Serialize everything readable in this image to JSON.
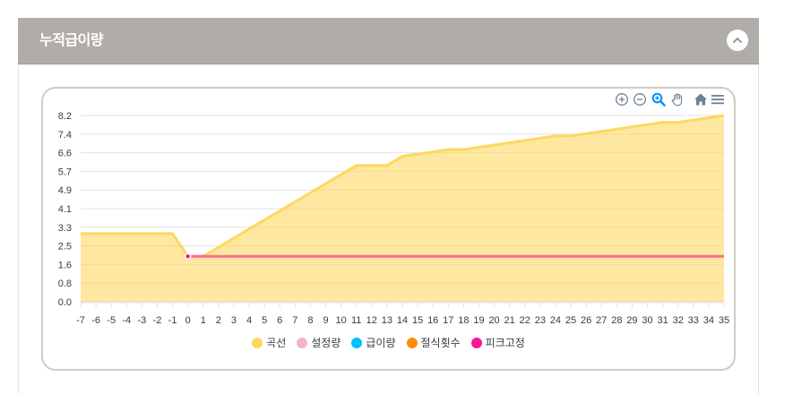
{
  "panel": {
    "title": "누적급이량",
    "collapse_icon": "chevron-up-icon"
  },
  "toolbar": {
    "icons": [
      {
        "name": "zoom-in-icon",
        "title": "Zoom In"
      },
      {
        "name": "zoom-out-icon",
        "title": "Zoom Out"
      },
      {
        "name": "selection-zoom-icon",
        "title": "Selection Zoom",
        "active": true
      },
      {
        "name": "pan-hand-icon",
        "title": "Panning"
      },
      {
        "name": "reset-home-icon",
        "title": "Reset Zoom"
      },
      {
        "name": "menu-icon",
        "title": "Menu"
      }
    ],
    "icon_color": "#6e8192",
    "active_color": "#008ffb"
  },
  "chart_data": {
    "type": "area",
    "title": "누적급이량",
    "xlabel": "",
    "ylabel": "",
    "x": [
      -7,
      -6,
      -5,
      -4,
      -3,
      -2,
      -1,
      0,
      1,
      2,
      3,
      4,
      5,
      6,
      7,
      8,
      9,
      10,
      11,
      12,
      13,
      14,
      15,
      16,
      17,
      18,
      19,
      20,
      21,
      22,
      23,
      24,
      25,
      26,
      27,
      28,
      29,
      30,
      31,
      32,
      33,
      34,
      35
    ],
    "xlim": [
      -7,
      35
    ],
    "ylim": [
      0,
      8.2
    ],
    "yticks": [
      "0.0",
      "0.8",
      "1.6",
      "2.5",
      "3.3",
      "4.1",
      "4.9",
      "5.7",
      "6.6",
      "7.4",
      "8.2"
    ],
    "grid": true,
    "legend_position": "bottom",
    "series": [
      {
        "name": "곡선",
        "type": "area",
        "color": "#fdd85d",
        "x": [
          -7,
          -6,
          -5,
          -4,
          -3,
          -2,
          -1,
          0,
          1,
          2,
          3,
          4,
          5,
          6,
          7,
          8,
          9,
          10,
          11,
          12,
          13,
          14,
          15,
          16,
          17,
          18,
          19,
          20,
          21,
          22,
          23,
          24,
          25,
          26,
          27,
          28,
          29,
          30,
          31,
          32,
          33,
          34,
          35
        ],
        "values": [
          3.0,
          3.0,
          3.0,
          3.0,
          3.0,
          3.0,
          3.0,
          2.0,
          2.0,
          2.4,
          2.8,
          3.2,
          3.6,
          4.0,
          4.4,
          4.8,
          5.2,
          5.6,
          6.0,
          6.0,
          6.0,
          6.4,
          6.5,
          6.6,
          6.7,
          6.7,
          6.8,
          6.9,
          7.0,
          7.1,
          7.2,
          7.3,
          7.3,
          7.4,
          7.5,
          7.6,
          7.7,
          7.8,
          7.9,
          7.9,
          8.0,
          8.1,
          8.2
        ]
      },
      {
        "name": "설정량",
        "type": "line",
        "color": "#f7b3c1",
        "line_color": "#f4728d",
        "x": [
          0,
          35
        ],
        "values": [
          2.0,
          2.0
        ]
      },
      {
        "name": "급이량",
        "type": "line",
        "color": "#00bfff",
        "x": [],
        "values": []
      },
      {
        "name": "절식횟수",
        "type": "line",
        "color": "#ff8c00",
        "x": [],
        "values": []
      },
      {
        "name": "피크고정",
        "type": "scatter",
        "color": "#ff1493",
        "x": [
          0
        ],
        "values": [
          2.0
        ]
      }
    ]
  }
}
